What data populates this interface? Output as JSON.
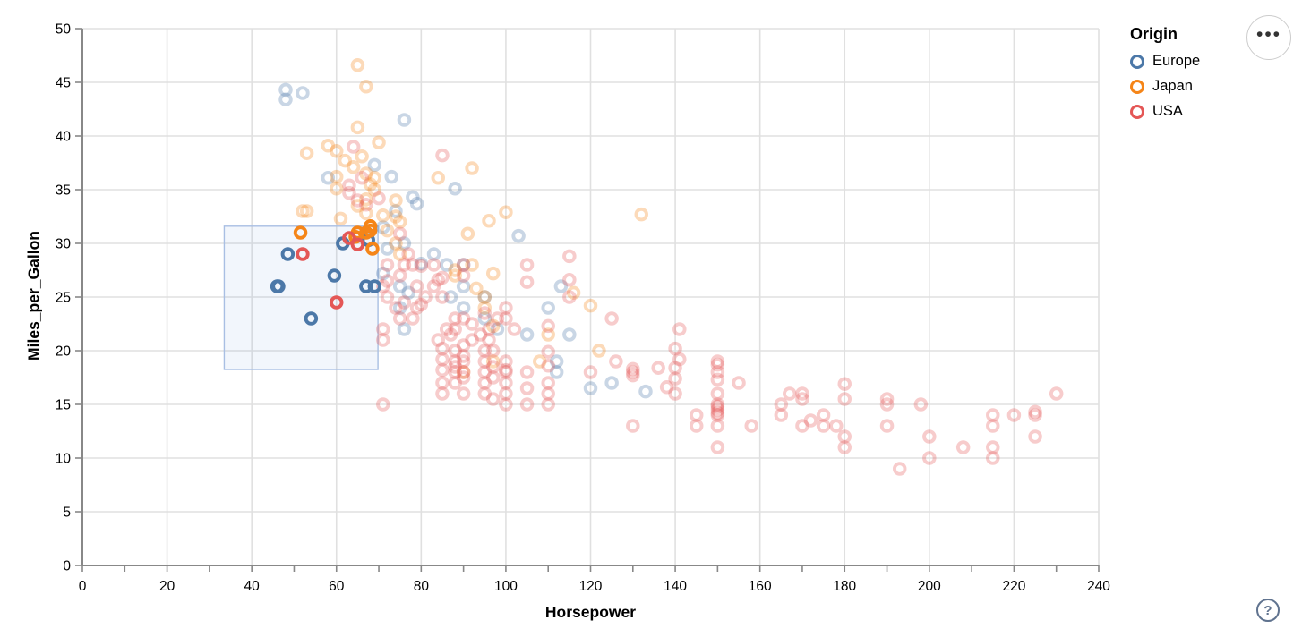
{
  "legend": {
    "title": "Origin",
    "items": [
      {
        "label": "Europe",
        "color": "#4c78a8"
      },
      {
        "label": "Japan",
        "color": "#f58518"
      },
      {
        "label": "USA",
        "color": "#e45756"
      }
    ]
  },
  "controls": {
    "menu_label": "•••",
    "help_label": "?"
  },
  "chart_data": {
    "type": "scatter",
    "title": "",
    "xlabel": "Horsepower",
    "ylabel": "Miles_per_Gallon",
    "xlim": [
      0,
      240
    ],
    "ylim": [
      0,
      50
    ],
    "x_tick_labels": [
      0,
      20,
      40,
      60,
      80,
      100,
      120,
      140,
      160,
      180,
      200,
      220,
      240
    ],
    "x_minor_step": 10,
    "y_tick_labels": [
      0,
      5,
      10,
      15,
      20,
      25,
      30,
      35,
      40,
      45,
      50
    ],
    "grid": true,
    "legend_position": "top-right",
    "brush": {
      "x": [
        33.5,
        69.8
      ],
      "y": [
        18.25,
        31.6
      ]
    },
    "point_colors": {
      "Europe": "#4c78a8",
      "Japan": "#f58518",
      "USA": "#e45756"
    },
    "unselected_opacity": 0.3,
    "series": [
      {
        "name": "Europe",
        "color": "#4c78a8",
        "points": [
          [
            46,
            26
          ],
          [
            46.3,
            26
          ],
          [
            48.5,
            29
          ],
          [
            54,
            23
          ],
          [
            59.5,
            27
          ],
          [
            61.5,
            30
          ],
          [
            67.5,
            30.3
          ],
          [
            67,
            26
          ],
          [
            69,
            26
          ],
          [
            48,
            44.3
          ],
          [
            48,
            43.4
          ],
          [
            52,
            44
          ],
          [
            76,
            41.5
          ],
          [
            58,
            36.1
          ],
          [
            69,
            37.3
          ],
          [
            73,
            36.2
          ],
          [
            74,
            33
          ],
          [
            78,
            34.3
          ],
          [
            79,
            33.7
          ],
          [
            88,
            35.1
          ],
          [
            71,
            31.5
          ],
          [
            76,
            30
          ],
          [
            72,
            29.5
          ],
          [
            103,
            30.7
          ],
          [
            83,
            29
          ],
          [
            90,
            28
          ],
          [
            86,
            28
          ],
          [
            87,
            25
          ],
          [
            90,
            24
          ],
          [
            95,
            25
          ],
          [
            90,
            26
          ],
          [
            75,
            24
          ],
          [
            76,
            22
          ],
          [
            75,
            26
          ],
          [
            71,
            27.2
          ],
          [
            95,
            23
          ],
          [
            98,
            22
          ],
          [
            112,
            18
          ],
          [
            112,
            19
          ],
          [
            113,
            26
          ],
          [
            110,
            24
          ],
          [
            115,
            21.5
          ],
          [
            105,
            21.5
          ],
          [
            77,
            25.4
          ],
          [
            80,
            28.1
          ],
          [
            120,
            16.5
          ],
          [
            125,
            17
          ],
          [
            133,
            16.2
          ]
        ]
      },
      {
        "name": "Japan",
        "color": "#f58518",
        "points": [
          [
            51.5,
            31
          ],
          [
            64.5,
            30.6
          ],
          [
            65,
            31
          ],
          [
            67,
            31
          ],
          [
            68,
            31.6
          ],
          [
            68,
            31.2
          ],
          [
            68.5,
            29.5
          ],
          [
            65,
            46.6
          ],
          [
            67,
            44.6
          ],
          [
            65,
            40.8
          ],
          [
            70,
            39.4
          ],
          [
            58,
            39.1
          ],
          [
            60,
            38.6
          ],
          [
            66,
            38.1
          ],
          [
            64,
            37.1
          ],
          [
            62,
            37.7
          ],
          [
            60,
            36.2
          ],
          [
            67,
            36.5
          ],
          [
            68,
            35.5
          ],
          [
            69,
            36.1
          ],
          [
            92,
            37
          ],
          [
            84,
            36.1
          ],
          [
            53,
            38.4
          ],
          [
            60,
            35.1
          ],
          [
            69,
            35
          ],
          [
            67,
            34.1
          ],
          [
            74,
            34
          ],
          [
            71,
            32.6
          ],
          [
            74,
            32.5
          ],
          [
            61,
            32.3
          ],
          [
            52,
            33
          ],
          [
            53,
            33
          ],
          [
            65,
            33.5
          ],
          [
            67,
            32.8
          ],
          [
            96,
            32.1
          ],
          [
            100,
            32.9
          ],
          [
            132,
            32.7
          ],
          [
            75,
            32
          ],
          [
            72,
            31.2
          ],
          [
            74,
            30
          ],
          [
            91,
            30.9
          ],
          [
            75,
            29
          ],
          [
            88,
            27
          ],
          [
            88,
            27.5
          ],
          [
            92,
            28
          ],
          [
            95,
            24
          ],
          [
            95,
            25
          ],
          [
            97,
            22.3
          ],
          [
            97,
            27.2
          ],
          [
            116,
            25.4
          ],
          [
            120,
            24.2
          ],
          [
            110,
            21.5
          ],
          [
            122,
            20
          ],
          [
            108,
            19
          ],
          [
            90,
            18
          ],
          [
            97,
            19
          ],
          [
            93,
            25.8
          ]
        ]
      },
      {
        "name": "USA",
        "color": "#e45756",
        "points": [
          [
            52,
            29
          ],
          [
            60,
            24.5
          ],
          [
            63,
            30.5
          ],
          [
            65,
            29.9
          ],
          [
            64,
            39
          ],
          [
            66,
            36.1
          ],
          [
            63,
            34.7
          ],
          [
            70,
            34.2
          ],
          [
            65,
            34
          ],
          [
            75,
            30.9
          ],
          [
            67,
            33.6
          ],
          [
            63,
            35.4
          ],
          [
            85,
            38.2
          ],
          [
            71,
            15
          ],
          [
            71,
            26
          ],
          [
            72,
            26.5
          ],
          [
            71,
            21
          ],
          [
            71,
            22
          ],
          [
            72,
            25
          ],
          [
            74,
            24
          ],
          [
            75,
            23
          ],
          [
            76,
            24.5
          ],
          [
            78,
            23
          ],
          [
            79,
            24
          ],
          [
            80,
            24.3
          ],
          [
            81,
            25
          ],
          [
            83,
            26
          ],
          [
            84,
            26.6
          ],
          [
            85,
            25
          ],
          [
            85,
            26.8
          ],
          [
            79,
            26
          ],
          [
            76,
            28
          ],
          [
            78,
            28
          ],
          [
            80,
            27.9
          ],
          [
            83,
            28
          ],
          [
            75,
            27
          ],
          [
            72,
            28
          ],
          [
            77,
            29
          ],
          [
            86,
            22
          ],
          [
            87,
            21.5
          ],
          [
            88,
            22
          ],
          [
            88,
            23
          ],
          [
            90,
            23
          ],
          [
            92,
            22.5
          ],
          [
            95,
            23.5
          ],
          [
            96,
            22
          ],
          [
            98,
            23
          ],
          [
            100,
            24
          ],
          [
            100,
            23
          ],
          [
            102,
            22
          ],
          [
            90,
            28
          ],
          [
            90,
            27
          ],
          [
            105,
            28
          ],
          [
            105,
            26.4
          ],
          [
            115,
            28.8
          ],
          [
            115,
            26.6
          ],
          [
            115,
            25
          ],
          [
            110,
            22.3
          ],
          [
            84,
            21
          ],
          [
            92,
            21
          ],
          [
            96,
            21
          ],
          [
            94,
            21.5
          ],
          [
            85,
            20.2
          ],
          [
            85,
            19.2
          ],
          [
            85,
            18.2
          ],
          [
            85,
            17
          ],
          [
            85,
            16
          ],
          [
            88,
            20
          ],
          [
            88,
            19
          ],
          [
            88,
            18.5
          ],
          [
            88,
            18
          ],
          [
            88,
            17
          ],
          [
            90,
            20.5
          ],
          [
            90,
            19.5
          ],
          [
            90,
            19
          ],
          [
            90,
            18
          ],
          [
            90,
            17.5
          ],
          [
            90,
            16
          ],
          [
            95,
            20
          ],
          [
            95,
            19
          ],
          [
            95,
            18
          ],
          [
            95,
            17
          ],
          [
            95,
            16
          ],
          [
            97,
            20
          ],
          [
            97,
            18.5
          ],
          [
            97,
            17.5
          ],
          [
            97,
            15.5
          ],
          [
            100,
            19
          ],
          [
            100,
            18
          ],
          [
            100,
            18.2
          ],
          [
            100,
            17
          ],
          [
            100,
            16
          ],
          [
            100,
            15
          ],
          [
            105,
            18
          ],
          [
            105,
            16.5
          ],
          [
            105,
            15
          ],
          [
            110,
            19.9
          ],
          [
            110,
            18.6
          ],
          [
            110,
            17
          ],
          [
            110,
            16
          ],
          [
            110,
            15
          ],
          [
            120,
            18
          ],
          [
            125,
            23
          ],
          [
            126,
            19
          ],
          [
            130,
            18.3
          ],
          [
            130,
            17.7
          ],
          [
            130,
            18
          ],
          [
            130,
            13
          ],
          [
            136,
            18.4
          ],
          [
            138,
            16.6
          ],
          [
            141,
            22
          ],
          [
            140,
            20.2
          ],
          [
            141,
            19.2
          ],
          [
            140,
            18.4
          ],
          [
            140,
            17.4
          ],
          [
            140,
            16
          ],
          [
            145,
            14
          ],
          [
            145,
            13
          ],
          [
            150,
            19
          ],
          [
            150,
            18.7
          ],
          [
            150,
            18
          ],
          [
            150,
            17.3
          ],
          [
            150,
            16
          ],
          [
            150,
            15
          ],
          [
            150,
            14.8
          ],
          [
            150,
            14.5
          ],
          [
            150,
            14
          ],
          [
            150,
            14.2
          ],
          [
            150,
            13
          ],
          [
            150,
            11
          ],
          [
            155,
            17
          ],
          [
            158,
            13
          ],
          [
            165,
            15
          ],
          [
            165,
            14
          ],
          [
            167,
            16
          ],
          [
            170,
            16
          ],
          [
            170,
            15.5
          ],
          [
            170,
            13
          ],
          [
            172,
            13.5
          ],
          [
            175,
            14
          ],
          [
            175,
            13
          ],
          [
            178,
            13
          ],
          [
            180,
            16.9
          ],
          [
            180,
            15.5
          ],
          [
            180,
            12
          ],
          [
            180,
            11
          ],
          [
            190,
            15.5
          ],
          [
            190,
            15
          ],
          [
            190,
            13
          ],
          [
            193,
            9
          ],
          [
            198,
            15
          ],
          [
            200,
            12
          ],
          [
            200,
            10
          ],
          [
            208,
            11
          ],
          [
            215,
            11
          ],
          [
            215,
            10
          ],
          [
            215,
            14
          ],
          [
            215,
            13
          ],
          [
            220,
            14
          ],
          [
            225,
            14
          ],
          [
            225,
            14.3
          ],
          [
            225,
            12
          ],
          [
            230,
            16
          ]
        ]
      }
    ]
  }
}
